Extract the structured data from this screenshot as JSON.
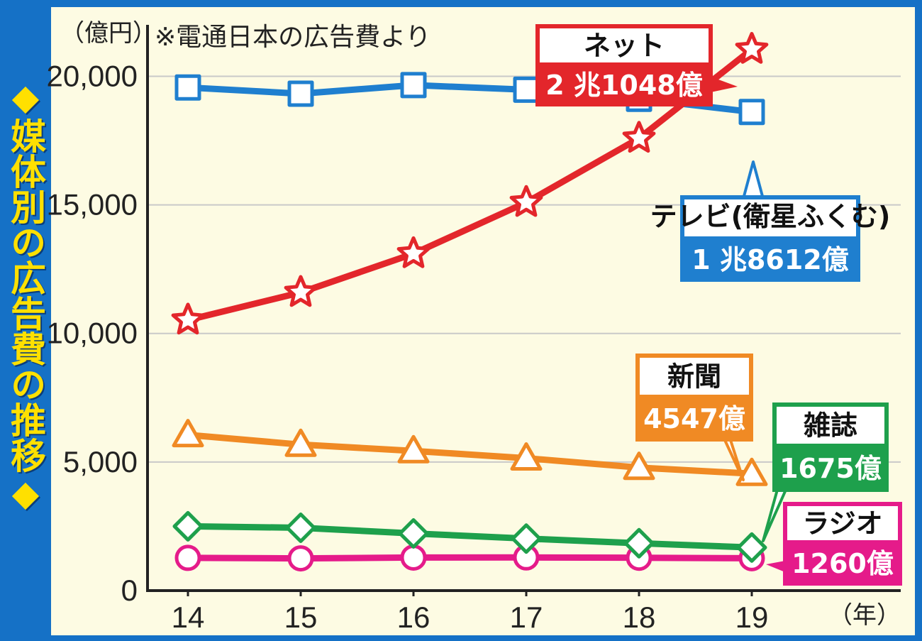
{
  "title": "◆媒体別の広告費の推移◆",
  "note": "※電通日本の広告費より",
  "y_unit": "（億円）",
  "x_unit": "（年）",
  "chart_data": {
    "type": "line",
    "title": "媒体別の広告費の推移",
    "x": [
      "14",
      "15",
      "16",
      "17",
      "18",
      "19"
    ],
    "ylim": [
      0,
      22000
    ],
    "yticks": [
      0,
      5000,
      10000,
      15000,
      20000
    ],
    "ytick_labels": [
      "0",
      "5,000",
      "10,000",
      "15,000",
      "20,000"
    ],
    "ylabel": "（億円）",
    "xlabel": "（年）",
    "grid": true,
    "series": [
      {
        "name": "テレビ(衛星ふくむ)",
        "color": "#1f7fcf",
        "marker": "square",
        "values": [
          19564,
          19323,
          19657,
          19478,
          19123,
          18612
        ],
        "end_label": "1 兆8612億"
      },
      {
        "name": "ネット",
        "color": "#e3262b",
        "marker": "star",
        "values": [
          10519,
          11594,
          13100,
          15094,
          17589,
          21048
        ],
        "end_label": "2 兆1048億"
      },
      {
        "name": "新聞",
        "color": "#f08a24",
        "marker": "triangle",
        "values": [
          6057,
          5679,
          5431,
          5147,
          4784,
          4547
        ],
        "end_label": "4547億"
      },
      {
        "name": "雑誌",
        "color": "#1ea04c",
        "marker": "diamond",
        "values": [
          2500,
          2443,
          2223,
          2023,
          1841,
          1675
        ],
        "end_label": "1675億"
      },
      {
        "name": "ラジオ",
        "color": "#e51b8a",
        "marker": "circle",
        "values": [
          1272,
          1254,
          1285,
          1290,
          1278,
          1260
        ],
        "end_label": "1260億"
      }
    ]
  }
}
